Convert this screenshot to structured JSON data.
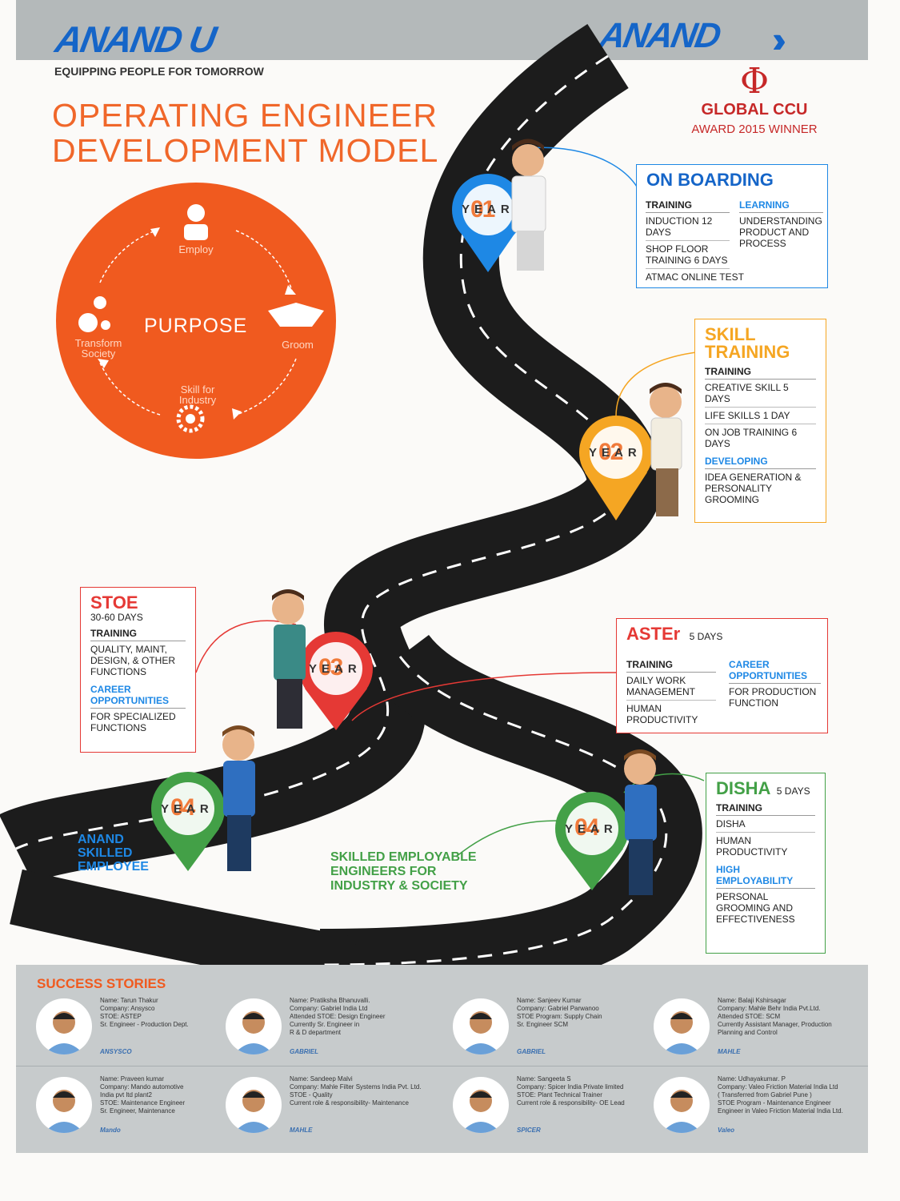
{
  "header": {
    "brand_left": "ANAND U",
    "tagline": "EQUIPPING PEOPLE FOR TOMORROW",
    "brand_right": "ANAND",
    "title_line1": "OPERATING ENGINEER",
    "title_line2": "DEVELOPMENT MODEL",
    "award_name": "GLOBAL CCU",
    "award_sub": "AWARD 2015 WINNER"
  },
  "purpose": {
    "center": "PURPOSE",
    "employ": "Employ",
    "groom": "Groom",
    "skill": "Skill for Industry",
    "transform": "Transform Society"
  },
  "markers": [
    {
      "num": "01",
      "year": "YEAR",
      "color": "#1e88e5"
    },
    {
      "num": "02",
      "year": "YEAR",
      "color": "#f5a623"
    },
    {
      "num": "03",
      "year": "YEAR",
      "color": "#e53935"
    },
    {
      "num": "04",
      "year": "YEAR",
      "color": "#43a047"
    },
    {
      "num": "04",
      "year": "YEAR",
      "color": "#43a047"
    }
  ],
  "onboarding": {
    "title": "ON BOARDING",
    "training_head": "TRAINING",
    "learning_head": "LEARNING",
    "t1": "INDUCTION 12 DAYS",
    "t2": "SHOP FLOOR TRAINING 6 DAYS",
    "t3": "ATMAC ONLINE TEST",
    "l1": "UNDERSTANDING PRODUCT AND PROCESS"
  },
  "skill": {
    "title1": "SKILL",
    "title2": "TRAINING",
    "training_head": "TRAINING",
    "t1": "CREATIVE SKILL 5 DAYS",
    "t2": "LIFE SKILLS 1 DAY",
    "t3": "ON JOB TRAINING 6 DAYS",
    "developing_head": "DEVELOPING",
    "d1": "IDEA GENERATION & PERSONALITY GROOMING"
  },
  "stoe": {
    "title": "STOE",
    "days": "30-60 DAYS",
    "training_head": "TRAINING",
    "t1": "QUALITY, MAINT, DESIGN, & OTHER FUNCTIONS",
    "career_head": "CAREER OPPORTUNITIES",
    "c1": "FOR SPECIALIZED FUNCTIONS"
  },
  "aster": {
    "title": "ASTEr",
    "days": "5 DAYS",
    "training_head": "TRAINING",
    "t1": "DAILY WORK MANAGEMENT",
    "t2": "HUMAN PRODUCTIVITY",
    "career_head": "CAREER OPPORTUNITIES",
    "c1": "FOR PRODUCTION FUNCTION"
  },
  "disha": {
    "title": "DISHA",
    "days": "5 DAYS",
    "training_head": "TRAINING",
    "t1": "DISHA",
    "t2": "HUMAN PRODUCTIVITY",
    "high_head": "HIGH EMPLOYABILITY",
    "h1": "PERSONAL GROOMING AND EFFECTIVENESS"
  },
  "labels": {
    "anand_skilled": "ANAND SKILLED EMPLOYEE",
    "skilled_employable": "SKILLED EMPLOYABLE ENGINEERS FOR INDUSTRY & SOCIETY"
  },
  "stories": {
    "title": "SUCCESS STORIES",
    "items": [
      {
        "text": "Name: Tarun Thakur\nCompany: Ansysco\nSTOE: ASTEP\nSr. Engineer - Production Dept.",
        "company": "ANSYSCO"
      },
      {
        "text": "Name: Pratiksha Bhanuvalli.\nCompany: Gabriel India Ltd\nAttended STOE: Design Engineer\nCurrently Sr. Engineer in\nR & D department",
        "company": "GABRIEL"
      },
      {
        "text": "Name: Sanjeev Kumar\nCompany: Gabriel Parwanoo\nSTOE Program: Supply Chain\nSr. Engineer SCM",
        "company": "GABRIEL"
      },
      {
        "text": "Name: Balaji Kshirsagar\nCompany: Mahle Behr India Pvt.Ltd.\nAttended STOE: SCM\nCurrently Assistant Manager, Production\nPlanning and Control",
        "company": "MAHLE"
      },
      {
        "text": "Name: Praveen kumar\nCompany: Mando automotive\nIndia pvt ltd plant2\nSTOE: Maintenance Engineer\nSr. Engineer, Maintenance",
        "company": "Mando"
      },
      {
        "text": "Name: Sandeep Malvi\nCompany: Mahle Filter Systems India Pvt. Ltd.\nSTOE - Quality\nCurrent role & responsibility- Maintenance",
        "company": "MAHLE"
      },
      {
        "text": "Name: Sangeeta S\nCompany: Spicer India Private limited\nSTOE: Plant Technical Trainer\nCurrent role & responsibility- OE Lead",
        "company": "SPICER"
      },
      {
        "text": "Name: Udhayakumar. P\nCompany: Valeo Friction Material India Ltd\n( Transferred from Gabriel Pune )\nSTOE Program - Maintenance Engineer\nEngineer in Valeo Friction Material India Ltd.",
        "company": "Valeo"
      }
    ]
  },
  "colors": {
    "orange": "#f05a1f",
    "blue": "#1565c8",
    "red": "#e53935",
    "green": "#43a047",
    "road": "#1c1c1c"
  }
}
